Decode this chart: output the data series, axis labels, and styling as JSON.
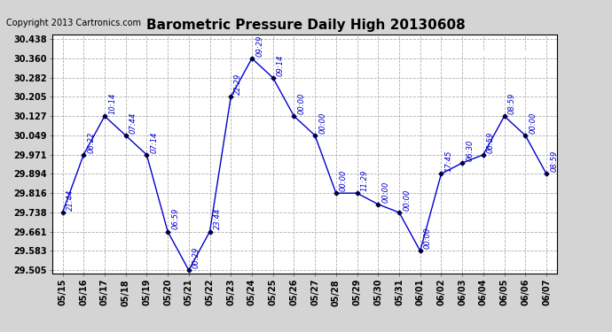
{
  "title": "Barometric Pressure Daily High 20130608",
  "copyright": "Copyright 2013 Cartronics.com",
  "dates": [
    "05/15",
    "05/16",
    "05/17",
    "05/18",
    "05/19",
    "05/20",
    "05/21",
    "05/22",
    "05/23",
    "05/24",
    "05/25",
    "05/26",
    "05/27",
    "05/28",
    "05/29",
    "05/30",
    "05/31",
    "06/01",
    "06/02",
    "06/03",
    "06/04",
    "06/05",
    "06/06",
    "06/07"
  ],
  "values": [
    29.738,
    29.971,
    30.127,
    30.049,
    29.971,
    29.661,
    29.505,
    29.661,
    30.205,
    30.36,
    30.282,
    30.127,
    30.049,
    29.816,
    29.816,
    29.771,
    29.738,
    29.583,
    29.894,
    29.938,
    29.971,
    30.127,
    30.049,
    29.894
  ],
  "annotations": [
    "21:44",
    "06:22",
    "10:14",
    "07:44",
    "07:14",
    "06:59",
    "00:29",
    "23:44",
    "22:29",
    "09:29",
    "09:14",
    "00:00",
    "00:00",
    "00:00",
    "11:29",
    "00:00",
    "00:00",
    "00:00",
    "17:45",
    "06:30",
    "06:59",
    "08:59",
    "00:00",
    "08:59"
  ],
  "ylim_min": 29.49,
  "ylim_max": 30.455,
  "yticks": [
    29.505,
    29.583,
    29.661,
    29.738,
    29.816,
    29.894,
    29.971,
    30.049,
    30.127,
    30.205,
    30.282,
    30.36,
    30.438
  ],
  "line_color": "#0000cc",
  "marker_color": "#000000",
  "bg_color": "#d4d4d4",
  "plot_bg_color": "#ffffff",
  "grid_color": "#b0b0b0",
  "title_color": "#000000",
  "annotation_color": "#0000cc",
  "legend_bg": "#0000aa",
  "legend_text_color": "#ffffff",
  "copyright_color": "#000000"
}
